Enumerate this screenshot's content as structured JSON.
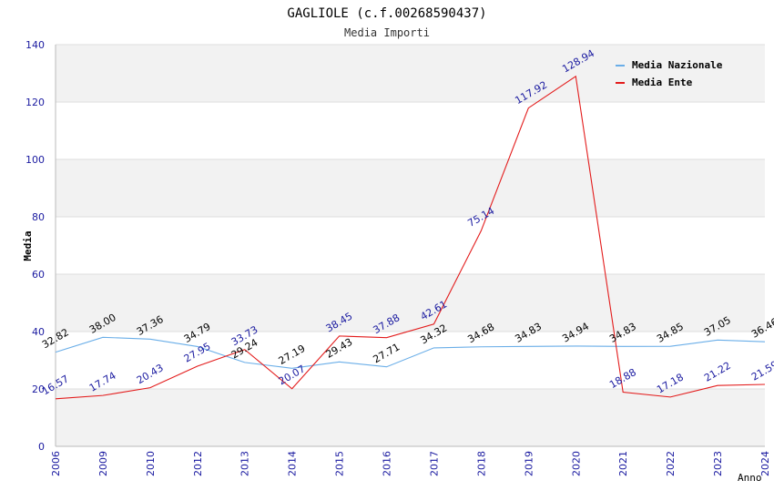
{
  "chart_data": {
    "type": "line",
    "title": "GAGLIOLE (c.f.00268590437)",
    "subtitle": "Media Importi",
    "xlabel": "Anno",
    "ylabel": "Media",
    "ylim": [
      0,
      140
    ],
    "yticks": [
      0,
      20,
      40,
      60,
      80,
      100,
      120,
      140
    ],
    "grid": "horizontal bands",
    "legend_position": "top-right",
    "categories": [
      "2006",
      "2009",
      "2010",
      "2012",
      "2013",
      "2014",
      "2015",
      "2016",
      "2017",
      "2018",
      "2019",
      "2020",
      "2021",
      "2022",
      "2023",
      "2024"
    ],
    "series": [
      {
        "name": "Media Nazionale",
        "color": "#6aaee8",
        "label_color": "#000000",
        "values": [
          32.82,
          38.0,
          37.36,
          34.79,
          29.24,
          27.19,
          29.43,
          27.71,
          34.32,
          34.68,
          34.83,
          34.94,
          34.83,
          34.85,
          37.05,
          36.46
        ],
        "labels": [
          "32.82",
          "38.00",
          "37.36",
          "34.79",
          "29.24",
          "27.19",
          "29.43",
          "27.71",
          "34.32",
          "34.68",
          "34.83",
          "34.94",
          "34.83",
          "34.85",
          "37.05",
          "36.46"
        ]
      },
      {
        "name": "Media Ente",
        "color": "#e31b1b",
        "label_color": "#1a1aa0",
        "values": [
          16.57,
          17.74,
          20.43,
          27.95,
          33.73,
          20.07,
          38.45,
          37.88,
          42.61,
          75.14,
          117.92,
          128.94,
          18.88,
          17.18,
          21.22,
          21.59
        ],
        "labels": [
          "16.57",
          "17.74",
          "20.43",
          "27.95",
          "33.73",
          "20.07",
          "38.45",
          "37.88",
          "42.61",
          "75.14",
          "117.92",
          "128.94",
          "18.88",
          "17.18",
          "21.22",
          "21.59"
        ]
      }
    ],
    "colors": {
      "axis_tick_text": "#1a1aa0",
      "band": "#f2f2f2",
      "gridline": "#dddddd",
      "axis_line": "#bbbbbb"
    }
  }
}
